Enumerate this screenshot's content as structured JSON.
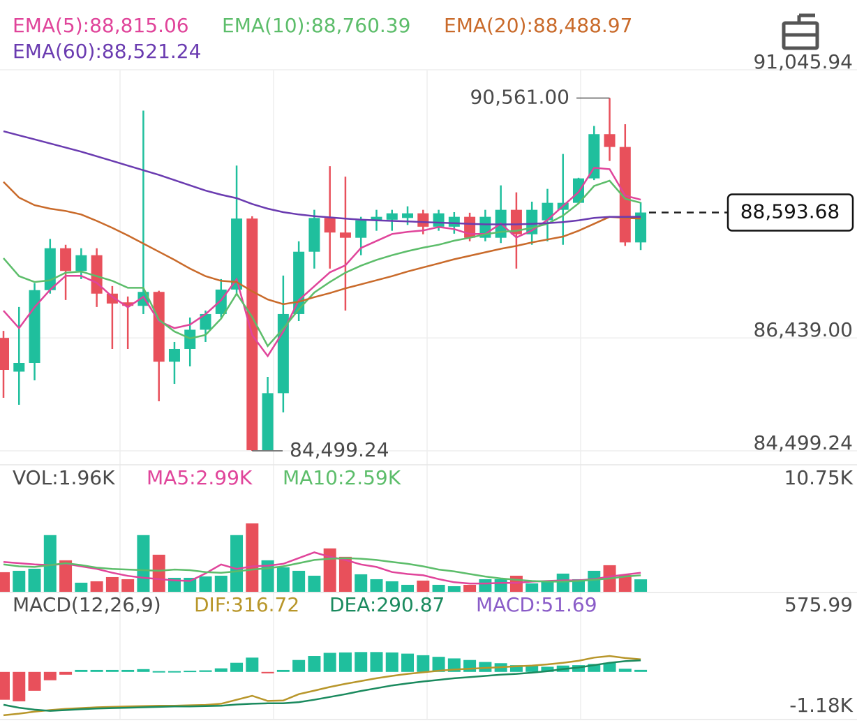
{
  "chart_data": [
    {
      "type": "candlestick",
      "ylim": [
        84499.24,
        91045.94
      ],
      "yticks": [
        {
          "value": 91045.94,
          "label": "91,045.94"
        },
        {
          "value": 86439,
          "label": "86,439.00"
        },
        {
          "value": 84499.24,
          "label": "84,499.24"
        }
      ],
      "grid": true,
      "up_color": "#1fbf9d",
      "down_color": "#e8505b",
      "open": [
        86440,
        85860,
        86010,
        87260,
        87980,
        87590,
        87860,
        87200,
        87050,
        86990,
        87230,
        86030,
        86250,
        86580,
        86850,
        87270,
        88490,
        84510,
        85490,
        86850,
        87920,
        88500,
        88250,
        88160,
        88460,
        88470,
        88500,
        88580,
        88350,
        88350,
        88520,
        88160,
        88160,
        88640,
        88220,
        88460,
        88640,
        88760,
        89180,
        89940,
        89720,
        88080
      ],
      "high": [
        86560,
        86970,
        87380,
        88140,
        88040,
        87980,
        87980,
        87330,
        87150,
        90345,
        87250,
        86370,
        86790,
        86910,
        87450,
        89400,
        88530,
        85770,
        87510,
        88100,
        88640,
        89390,
        89210,
        88520,
        88640,
        88640,
        88700,
        88640,
        88640,
        88600,
        88590,
        88640,
        89060,
        88940,
        88780,
        89000,
        89600,
        89190,
        90080,
        90561,
        90110,
        88770
      ],
      "low": [
        85410,
        85290,
        85710,
        87200,
        87090,
        87450,
        86970,
        86250,
        86250,
        86850,
        85350,
        85650,
        85950,
        86370,
        86790,
        87200,
        84499.24,
        84560,
        85160,
        86730,
        87630,
        87630,
        86910,
        87860,
        88280,
        88280,
        88380,
        88220,
        88280,
        88230,
        88100,
        88100,
        88070,
        87630,
        88040,
        88100,
        88040,
        88760,
        89150,
        89480,
        88020,
        87950
      ],
      "close": [
        85890,
        86010,
        87260,
        87980,
        87590,
        87860,
        87200,
        87030,
        86990,
        87230,
        86030,
        86250,
        86580,
        86850,
        87270,
        88490,
        84510,
        85490,
        86850,
        87920,
        88500,
        88250,
        88160,
        88460,
        88520,
        88580,
        88580,
        88350,
        88580,
        88520,
        88160,
        88520,
        88640,
        88220,
        88640,
        88760,
        88760,
        89180,
        89940,
        89720,
        88080,
        88593.68
      ],
      "series": [
        {
          "name": "EMA(5):88,815.06",
          "color": "#e0449a",
          "values": [
            86907,
            86607,
            86967,
            87266,
            87506,
            87506,
            87386,
            87146,
            86967,
            87146,
            86727,
            86607,
            86667,
            86847,
            87087,
            87446,
            86488,
            86128,
            86548,
            87087,
            87326,
            87566,
            87686,
            87985,
            88105,
            88225,
            88261,
            88285,
            88345,
            88309,
            88225,
            88225,
            88405,
            88165,
            88285,
            88465,
            88705,
            88944,
            89363,
            89339,
            88884,
            88815.06
          ]
        },
        {
          "name": "EMA(10):88,760.39",
          "color": "#5cbd6a",
          "values": [
            87810,
            87500,
            87400,
            87430,
            87560,
            87580,
            87500,
            87420,
            87300,
            87300,
            86750,
            86550,
            86430,
            86490,
            86770,
            87200,
            86800,
            86300,
            86600,
            86930,
            87220,
            87400,
            87560,
            87680,
            87780,
            87860,
            87930,
            87990,
            88040,
            88110,
            88160,
            88220,
            88260,
            88280,
            88330,
            88400,
            88540,
            88750,
            89050,
            89140,
            88830,
            88760.39
          ]
        },
        {
          "name": "EMA(20):88,488.97",
          "color": "#c96a2a",
          "values": [
            89120,
            88850,
            88720,
            88660,
            88620,
            88560,
            88450,
            88330,
            88200,
            88060,
            87920,
            87780,
            87630,
            87500,
            87420,
            87400,
            87240,
            87100,
            87020,
            87060,
            87140,
            87210,
            87290,
            87360,
            87430,
            87500,
            87580,
            87650,
            87720,
            87790,
            87850,
            87910,
            87970,
            88020,
            88080,
            88130,
            88180,
            88280,
            88400,
            88520,
            88500,
            88488.97
          ]
        },
        {
          "name": "EMA(60):88,521.24",
          "color": "#6a3bb0",
          "values": [
            89990,
            89920,
            89850,
            89780,
            89710,
            89640,
            89560,
            89480,
            89400,
            89320,
            89240,
            89150,
            89060,
            88970,
            88900,
            88840,
            88740,
            88660,
            88600,
            88560,
            88530,
            88510,
            88490,
            88470,
            88460,
            88450,
            88440,
            88430,
            88420,
            88410,
            88400,
            88390,
            88390,
            88390,
            88400,
            88410,
            88430,
            88460,
            88500,
            88520,
            88520,
            88521.24
          ]
        }
      ],
      "annotations": [
        {
          "text": "90,561.00",
          "value": 90561
        },
        {
          "text": "84,499.24",
          "value": 84499.24
        }
      ],
      "last_price": 88593.68,
      "last_price_label": "88,593.68"
    },
    {
      "type": "bar",
      "name": "VOL:1.96K",
      "max_label": "10.75K",
      "ylim": [
        0,
        10750
      ],
      "values": [
        3080,
        3300,
        3630,
        8910,
        4950,
        1430,
        1650,
        2310,
        1980,
        8910,
        5830,
        2200,
        2200,
        2420,
        2530,
        8910,
        10750,
        4950,
        3850,
        3300,
        2530,
        6820,
        5500,
        2750,
        1980,
        1650,
        1100,
        1760,
        1100,
        880,
        1100,
        1980,
        1980,
        2530,
        1320,
        1650,
        2860,
        1980,
        3300,
        4180,
        2640,
        1960
      ],
      "series": [
        {
          "name": "MA5:2.99K",
          "color": "#e0449a",
          "values": [
            4700,
            4500,
            4300,
            4200,
            4400,
            4000,
            3600,
            3000,
            2500,
            2200,
            2000,
            1800,
            1700,
            2900,
            4300,
            3600,
            4000,
            4100,
            4400,
            5300,
            6200,
            5500,
            5000,
            4300,
            3900,
            3100,
            2800,
            2600,
            2000,
            1500,
            1300,
            1300,
            1400,
            1400,
            1600,
            1700,
            1800,
            1800,
            2000,
            2400,
            2700,
            2990
          ]
        },
        {
          "name": "MA10:2.59K",
          "color": "#5cbd6a",
          "values": [
            4300,
            4000,
            3900,
            4200,
            4500,
            4200,
            3800,
            3600,
            3500,
            3400,
            3300,
            3500,
            3400,
            3100,
            3000,
            3200,
            3500,
            3700,
            4000,
            4500,
            5000,
            5200,
            5300,
            5200,
            5000,
            4700,
            4400,
            4000,
            3500,
            3200,
            2800,
            2400,
            2100,
            1900,
            1700,
            1600,
            1600,
            1700,
            1900,
            2100,
            2400,
            2590
          ]
        }
      ]
    },
    {
      "type": "macd",
      "name": "MACD(12,26,9)",
      "max_label": "575.99",
      "min_label": "-1.18K",
      "ylim": [
        -1180,
        575.99
      ],
      "up_color": "#1fbf9d",
      "down_color": "#e8505b",
      "values": [
        -700,
        -740,
        -475,
        -210,
        -70,
        50,
        50,
        50,
        50,
        70,
        20,
        20,
        30,
        40,
        90,
        230,
        360,
        -30,
        50,
        300,
        400,
        480,
        490,
        500,
        500,
        490,
        460,
        420,
        380,
        340,
        300,
        250,
        220,
        170,
        150,
        130,
        160,
        170,
        200,
        230,
        80,
        51.69
      ],
      "series": [
        {
          "name": "DIF:316.72",
          "color": "#b8962a",
          "values": [
            -1090,
            -1050,
            -1000,
            -960,
            -930,
            -910,
            -890,
            -880,
            -870,
            -860,
            -850,
            -850,
            -840,
            -830,
            -800,
            -700,
            -600,
            -730,
            -720,
            -560,
            -470,
            -380,
            -300,
            -230,
            -160,
            -100,
            -50,
            -10,
            30,
            60,
            80,
            100,
            120,
            140,
            160,
            190,
            230,
            280,
            360,
            400,
            350,
            316.72
          ]
        },
        {
          "name": "DEA:290.87",
          "color": "#1a8a5e",
          "values": [
            -827,
            -900,
            -950,
            -980,
            -960,
            -940,
            -920,
            -910,
            -900,
            -890,
            -880,
            -870,
            -870,
            -860,
            -850,
            -820,
            -800,
            -790,
            -790,
            -760,
            -700,
            -630,
            -560,
            -480,
            -410,
            -340,
            -290,
            -240,
            -200,
            -160,
            -130,
            -100,
            -70,
            -50,
            -20,
            20,
            70,
            110,
            170,
            230,
            270,
            290.87
          ]
        }
      ],
      "histogram_name": "MACD:51.69",
      "histogram_color": "#8a5cc8"
    }
  ]
}
